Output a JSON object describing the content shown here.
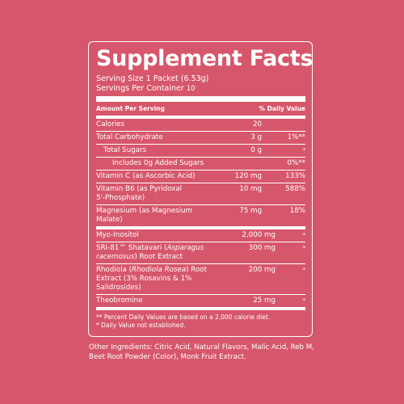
{
  "title": "Supplement Facts",
  "serving_size_label": "Serving Size 1 Packet (6.53g)",
  "servings_per_container_label": "Servings Per Container",
  "servings_per_container_value": "10",
  "header": {
    "amount": "Amount Per Serving",
    "dv": "% Daily Value"
  },
  "rows": {
    "calories": {
      "name": "Calories",
      "amount": "20",
      "dv": ""
    },
    "carb": {
      "name": "Total Carbohydrate",
      "amount": "3 g",
      "dv": "1%**"
    },
    "sugars": {
      "name": "Total Sugars",
      "amount": "0 g",
      "dv": "*"
    },
    "added_sugars": {
      "name": "Includes 0g Added Sugars",
      "amount": "",
      "dv": "0%**"
    },
    "vitc": {
      "name": "Vitamin C (as Ascorbic Acid)",
      "amount": "120 mg",
      "dv": "133%"
    },
    "vitb6_line1": "Vitamin B6 (as Pyridoxal",
    "vitb6_line2": "5'-Phosphate)",
    "vitb6": {
      "amount": "10 mg",
      "dv": "588%"
    },
    "magnesium": {
      "name": "Magnesium (as Magnesium Malate)",
      "amount": "75 mg",
      "dv": "18%"
    },
    "inositol": {
      "name": "Myo-Inositol",
      "amount": "2,000 mg",
      "dv": "*"
    },
    "shatavari_pre": "SRI-81™ Shatavari (",
    "shatavari_italic": "Asparagus racemosus",
    "shatavari_post": ") Root Extract",
    "shatavari": {
      "amount": "300 mg",
      "dv": "*"
    },
    "rhodiola_pre": "Rhodiola (",
    "rhodiola_italic": "Rhodiola Rosea",
    "rhodiola_post": ") Root Extract (3% Rosavins & 1% Salidrosides)",
    "rhodiola": {
      "amount": "200 mg",
      "dv": "*"
    },
    "theobromine": {
      "name": "Theobromine",
      "amount": "25 mg",
      "dv": "*"
    }
  },
  "footnote1": "** Percent Daily Values are based on a 2,000 calorie diet.",
  "footnote2": "* Daily Value not established.",
  "other_ingredients": "Other Ingredients: Citric Acid, Natural Flavors, Malic Acid, Reb M, Beet Root Powder (Color), Monk Fruit Extract.",
  "colors": {
    "background": "#d6576b",
    "foreground": "#ffffff"
  }
}
